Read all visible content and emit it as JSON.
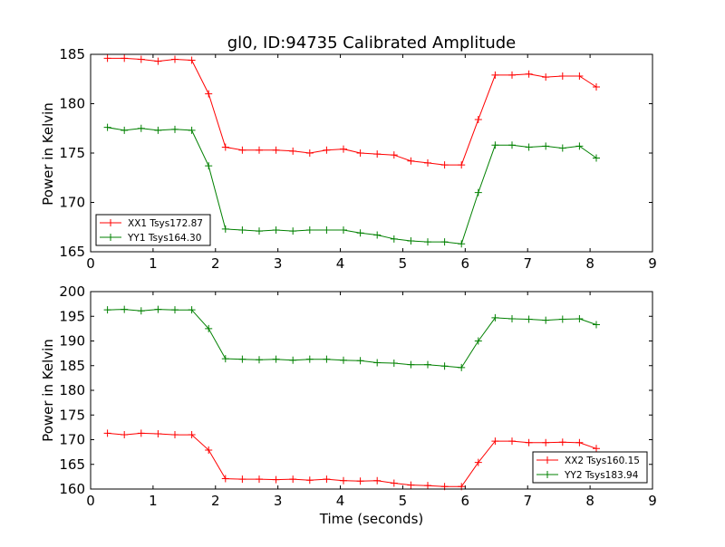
{
  "chart_data": [
    {
      "type": "line",
      "title": "gl0, ID:94735 Calibrated Amplitude",
      "xlabel": "",
      "ylabel": "Power in Kelvin",
      "xlim": [
        0,
        9
      ],
      "ylim": [
        165,
        185
      ],
      "xticks": [
        "0",
        "1",
        "2",
        "3",
        "4",
        "5",
        "6",
        "7",
        "8",
        "9"
      ],
      "yticks": [
        "165",
        "170",
        "175",
        "180",
        "185"
      ],
      "grid": false,
      "legend_position": "lower-left",
      "x": [
        0.27,
        0.54,
        0.81,
        1.08,
        1.35,
        1.62,
        1.89,
        2.16,
        2.43,
        2.7,
        2.97,
        3.24,
        3.51,
        3.78,
        4.05,
        4.32,
        4.59,
        4.86,
        5.13,
        5.4,
        5.67,
        5.94,
        6.21,
        6.48,
        6.75,
        7.02,
        7.29,
        7.56,
        7.83,
        8.1
      ],
      "series": [
        {
          "name": "XX1 Tsys172.87",
          "color": "#ff0000",
          "values": [
            184.6,
            184.6,
            184.5,
            184.3,
            184.5,
            184.4,
            181.0,
            175.6,
            175.3,
            175.3,
            175.3,
            175.2,
            175.0,
            175.3,
            175.4,
            175.0,
            174.9,
            174.8,
            174.2,
            174.0,
            173.8,
            173.8,
            178.4,
            182.9,
            182.9,
            183.0,
            182.7,
            182.8,
            182.8,
            181.7
          ]
        },
        {
          "name": "YY1 Tsys164.30",
          "color": "#008000",
          "values": [
            177.6,
            177.3,
            177.5,
            177.3,
            177.4,
            177.3,
            173.7,
            167.3,
            167.2,
            167.1,
            167.2,
            167.1,
            167.2,
            167.2,
            167.2,
            166.9,
            166.7,
            166.3,
            166.1,
            166.0,
            166.0,
            165.8,
            171.0,
            175.8,
            175.8,
            175.6,
            175.7,
            175.5,
            175.7,
            174.5
          ]
        }
      ]
    },
    {
      "type": "line",
      "title": "",
      "xlabel": "Time (seconds)",
      "ylabel": "Power in Kelvin",
      "xlim": [
        0,
        9
      ],
      "ylim": [
        160,
        200
      ],
      "xticks": [
        "0",
        "1",
        "2",
        "3",
        "4",
        "5",
        "6",
        "7",
        "8",
        "9"
      ],
      "yticks": [
        "160",
        "165",
        "170",
        "175",
        "180",
        "185",
        "190",
        "195",
        "200"
      ],
      "grid": false,
      "legend_position": "lower-right",
      "x": [
        0.27,
        0.54,
        0.81,
        1.08,
        1.35,
        1.62,
        1.89,
        2.16,
        2.43,
        2.7,
        2.97,
        3.24,
        3.51,
        3.78,
        4.05,
        4.32,
        4.59,
        4.86,
        5.13,
        5.4,
        5.67,
        5.94,
        6.21,
        6.48,
        6.75,
        7.02,
        7.29,
        7.56,
        7.83,
        8.1
      ],
      "series": [
        {
          "name": "XX2 Tsys160.15",
          "color": "#ff0000",
          "values": [
            171.3,
            171.0,
            171.3,
            171.2,
            171.0,
            171.0,
            167.9,
            162.1,
            162.0,
            162.0,
            161.9,
            162.0,
            161.8,
            162.0,
            161.7,
            161.6,
            161.7,
            161.2,
            160.8,
            160.7,
            160.5,
            160.5,
            165.4,
            169.7,
            169.7,
            169.4,
            169.4,
            169.5,
            169.4,
            168.2
          ]
        },
        {
          "name": "YY2 Tsys183.94",
          "color": "#008000",
          "values": [
            196.3,
            196.4,
            196.1,
            196.4,
            196.3,
            196.3,
            192.5,
            186.4,
            186.3,
            186.2,
            186.3,
            186.1,
            186.3,
            186.3,
            186.1,
            186.0,
            185.6,
            185.5,
            185.2,
            185.2,
            184.9,
            184.6,
            190.0,
            194.7,
            194.5,
            194.4,
            194.2,
            194.4,
            194.5,
            193.3
          ]
        }
      ]
    }
  ]
}
